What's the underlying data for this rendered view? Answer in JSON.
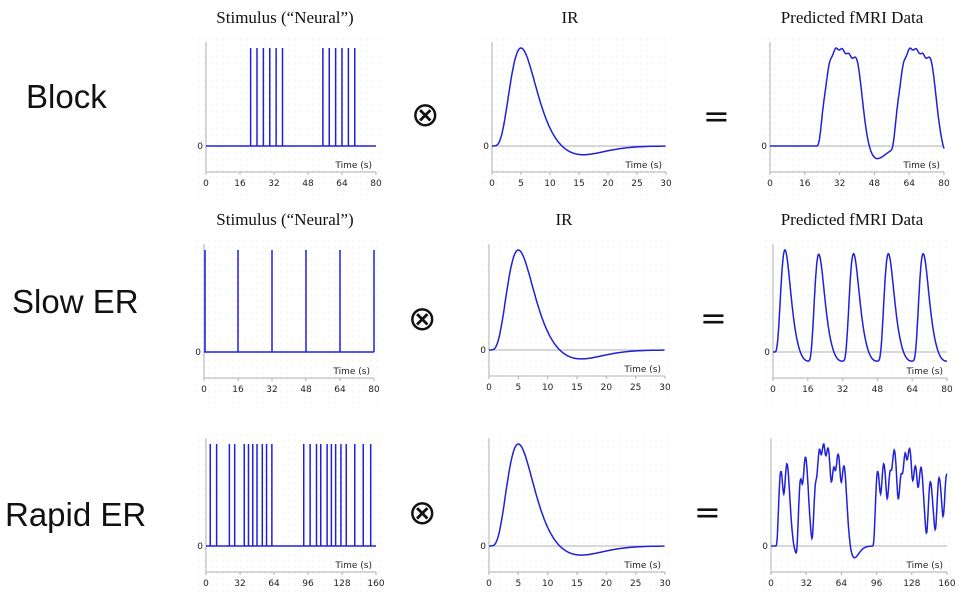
{
  "col_titles": {
    "stimulus": "Stimulus (“Neural”)",
    "ir": "IR",
    "predicted": "Predicted fMRI Data"
  },
  "operators": {
    "convolve": "⊗",
    "equals": "="
  },
  "rows": [
    {
      "label": "Block",
      "stimulus": {
        "xlabel": "Time (s)",
        "xticks": [
          0,
          16,
          32,
          48,
          64,
          80
        ],
        "xmax": 80,
        "zero_label": "0",
        "onsets": [
          21,
          24,
          27,
          30,
          33,
          36,
          55,
          58,
          61,
          64,
          67,
          70
        ]
      },
      "ir": {
        "xlabel": "Time (s)",
        "xticks": [
          0,
          5,
          10,
          15,
          20,
          25,
          30
        ],
        "xmax": 30,
        "zero_label": "0"
      },
      "predicted": {
        "xlabel": "Time (s)",
        "xticks": [
          0,
          16,
          32,
          48,
          64,
          80
        ],
        "xmax": 80,
        "zero_label": "0"
      }
    },
    {
      "label": "Slow ER",
      "stimulus": {
        "xlabel": "Time (s)",
        "xticks": [
          0,
          16,
          32,
          48,
          64,
          80
        ],
        "xmax": 80,
        "zero_label": "0",
        "onsets": [
          0.5,
          16,
          32,
          48,
          64,
          80
        ]
      },
      "ir": {
        "xlabel": "Time (s)",
        "xticks": [
          0,
          5,
          10,
          15,
          20,
          25,
          30
        ],
        "xmax": 30,
        "zero_label": "0"
      },
      "predicted": {
        "xlabel": "Time (s)",
        "xticks": [
          0,
          16,
          32,
          48,
          64,
          80
        ],
        "xmax": 80,
        "zero_label": "0"
      }
    },
    {
      "label": "Rapid ER",
      "stimulus": {
        "xlabel": "Time (s)",
        "xticks": [
          0,
          32,
          64,
          96,
          128,
          160
        ],
        "xmax": 160,
        "zero_label": "0",
        "onsets": [
          4,
          10,
          22,
          27,
          36,
          40,
          44,
          48,
          53,
          57,
          62,
          92,
          98,
          104,
          108,
          114,
          118,
          122,
          127,
          132,
          140,
          148,
          155
        ]
      },
      "ir": {
        "xlabel": "Time (s)",
        "xticks": [
          0,
          5,
          10,
          15,
          20,
          25,
          30
        ],
        "xmax": 30,
        "zero_label": "0"
      },
      "predicted": {
        "xlabel": "Time (s)",
        "xticks": [
          0,
          32,
          64,
          96,
          128,
          160
        ],
        "xmax": 160,
        "zero_label": "0"
      }
    }
  ]
}
